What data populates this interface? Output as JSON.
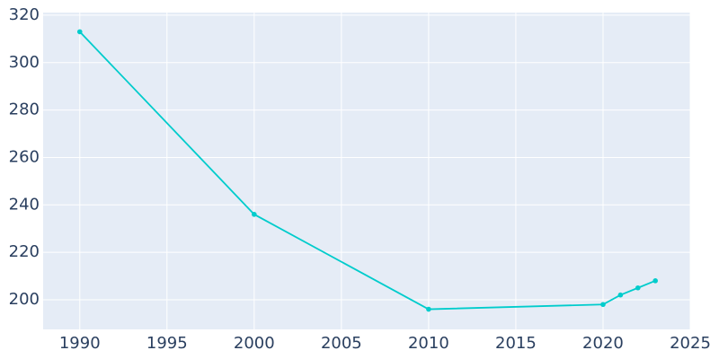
{
  "chart_data": {
    "type": "line",
    "x": [
      1990,
      2000,
      2010,
      2020,
      2021,
      2022,
      2023
    ],
    "series": [
      {
        "color": "#00cccc",
        "values": [
          313,
          236,
          196,
          198,
          202,
          205,
          208
        ]
      }
    ],
    "xlim": [
      1987.9,
      2025
    ],
    "xticks": [
      1990,
      1995,
      2000,
      2005,
      2010,
      2015,
      2020,
      2025
    ],
    "ylim": [
      187.5,
      321.1
    ],
    "yticks": [
      200,
      220,
      240,
      260,
      280,
      300,
      320
    ],
    "grid": true
  }
}
